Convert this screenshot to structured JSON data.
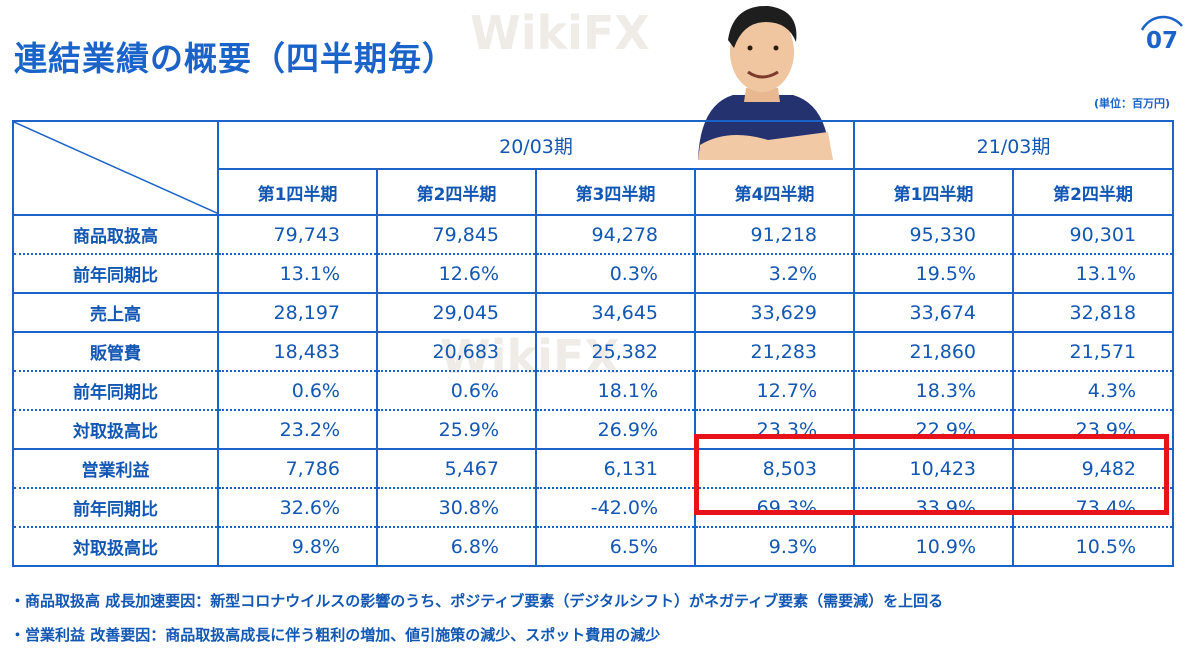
{
  "slide": {
    "title": "連結業績の概要（四半期毎）",
    "page_number": "07",
    "unit_note": "(単位：百万円)"
  },
  "table": {
    "periods": [
      "20/03期",
      "21/03期"
    ],
    "quarters": [
      "第1四半期",
      "第2四半期",
      "第3四半期",
      "第4四半期",
      "第1四半期",
      "第2四半期"
    ],
    "rows": [
      {
        "label": "商品取扱高",
        "values": [
          "79,743",
          "79,845",
          "94,278",
          "91,218",
          "95,330",
          "90,301"
        ]
      },
      {
        "label": "前年同期比",
        "values": [
          "13.1%",
          "12.6%",
          "0.3%",
          "3.2%",
          "19.5%",
          "13.1%"
        ]
      },
      {
        "label": "売上高",
        "values": [
          "28,197",
          "29,045",
          "34,645",
          "33,629",
          "33,674",
          "32,818"
        ]
      },
      {
        "label": "販管費",
        "values": [
          "18,483",
          "20,683",
          "25,382",
          "21,283",
          "21,860",
          "21,571"
        ]
      },
      {
        "label": "前年同期比",
        "values": [
          "0.6%",
          "0.6%",
          "18.1%",
          "12.7%",
          "18.3%",
          "4.3%"
        ]
      },
      {
        "label": "対取扱高比",
        "values": [
          "23.2%",
          "25.9%",
          "26.9%",
          "23.3%",
          "22.9%",
          "23.9%"
        ]
      },
      {
        "label": "営業利益",
        "values": [
          "7,786",
          "5,467",
          "6,131",
          "8,503",
          "10,423",
          "9,482"
        ]
      },
      {
        "label": "前年同期比",
        "values": [
          "32.6%",
          "30.8%",
          "-42.0%",
          "69.3%",
          "33.9%",
          "73.4%"
        ]
      },
      {
        "label": "対取扱高比",
        "values": [
          "9.8%",
          "6.8%",
          "6.5%",
          "9.3%",
          "10.9%",
          "10.5%"
        ]
      }
    ]
  },
  "notes": [
    "・商品取扱高 成長加速要因：新型コロナウイルスの影響のうち、ポジティブ要素（デジタルシフト）がネガティブ要素（需要減）を上回る",
    "・営業利益 改善要因：商品取扱高成長に伴う粗利の増加、値引施策の減少、スポット費用の減少"
  ],
  "watermark": "WikiFX",
  "colors": {
    "primary": "#1a63c8",
    "highlight": "#e8121a"
  }
}
